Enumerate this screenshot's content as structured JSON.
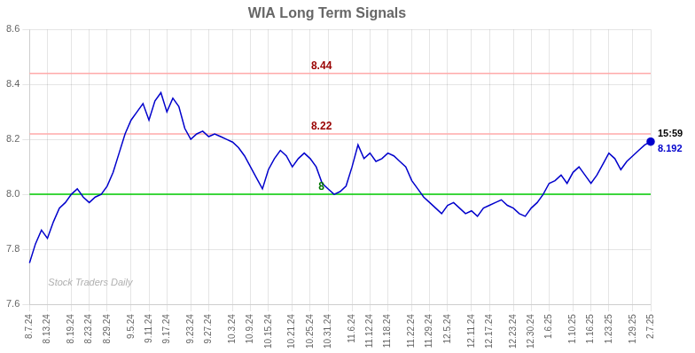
{
  "chart_data": {
    "type": "line",
    "title": "WIA Long Term Signals",
    "categories": [
      "8.7.24",
      null,
      null,
      "8.13.24",
      null,
      null,
      null,
      "8.19.24",
      null,
      null,
      "8.23.24",
      null,
      null,
      "8.29.24",
      null,
      null,
      null,
      "9.5.24",
      null,
      null,
      "9.11.24",
      null,
      null,
      "9.17.24",
      null,
      null,
      null,
      "9.23.24",
      null,
      null,
      "9.27.24",
      null,
      null,
      null,
      "10.3.24",
      null,
      null,
      "10.9.24",
      null,
      null,
      "10.15.24",
      null,
      null,
      null,
      "10.21.24",
      null,
      null,
      "10.25.24",
      null,
      null,
      "10.31.24",
      null,
      null,
      null,
      "11.6.24",
      null,
      null,
      "11.12.24",
      null,
      null,
      "11.18.24",
      null,
      null,
      null,
      "11.22.24",
      null,
      null,
      "11.29.24",
      null,
      null,
      "12.5.24",
      null,
      null,
      null,
      "12.11.24",
      null,
      null,
      "12.17.24",
      null,
      null,
      null,
      "12.23.24",
      null,
      null,
      "12.30.24",
      null,
      null,
      "1.6.25",
      null,
      null,
      null,
      "1.10.25",
      null,
      null,
      "1.16.25",
      null,
      null,
      "1.23.25",
      null,
      null,
      null,
      "1.29.25",
      null,
      null,
      "2.7.25"
    ],
    "values": [
      7.75,
      7.82,
      7.87,
      7.84,
      7.9,
      7.95,
      7.97,
      8.0,
      8.02,
      7.99,
      7.97,
      7.99,
      8.0,
      8.03,
      8.08,
      8.15,
      8.22,
      8.27,
      8.3,
      8.33,
      8.27,
      8.34,
      8.37,
      8.3,
      8.35,
      8.32,
      8.24,
      8.2,
      8.22,
      8.23,
      8.21,
      8.22,
      8.21,
      8.2,
      8.19,
      8.17,
      8.14,
      8.1,
      8.06,
      8.02,
      8.09,
      8.13,
      8.16,
      8.14,
      8.1,
      8.13,
      8.15,
      8.13,
      8.1,
      8.04,
      8.02,
      8.0,
      8.01,
      8.03,
      8.1,
      8.18,
      8.13,
      8.15,
      8.12,
      8.13,
      8.15,
      8.14,
      8.12,
      8.1,
      8.05,
      8.02,
      7.99,
      7.97,
      7.95,
      7.93,
      7.96,
      7.97,
      7.95,
      7.93,
      7.94,
      7.92,
      7.95,
      7.96,
      7.97,
      7.98,
      7.96,
      7.95,
      7.93,
      7.92,
      7.95,
      7.97,
      8.0,
      8.04,
      8.05,
      8.07,
      8.04,
      8.08,
      8.1,
      8.07,
      8.04,
      8.07,
      8.11,
      8.15,
      8.13,
      8.09,
      8.12,
      8.14,
      8.16,
      8.18,
      8.192
    ],
    "color": "#0000cc",
    "ylim": [
      7.6,
      8.6
    ],
    "yticks": [
      7.6,
      7.8,
      {
        "value": 8.0,
        "label": "8.0"
      },
      8.2,
      8.4,
      8.6
    ],
    "grid": true,
    "hlines": [
      {
        "y": 8.44,
        "label": "8.44",
        "color": "#ffaaaa",
        "label_color": "#990000"
      },
      {
        "y": 8.22,
        "label": "8.22",
        "color": "#ffaaaa",
        "label_color": "#990000"
      },
      {
        "y": 8.0,
        "label": "8",
        "color": "#00cc00",
        "label_color": "#007700"
      }
    ],
    "last_point": {
      "time_label": "15:59",
      "value_label": "8.192",
      "color": "#0000cc"
    },
    "watermark": "Stock Traders Daily"
  }
}
